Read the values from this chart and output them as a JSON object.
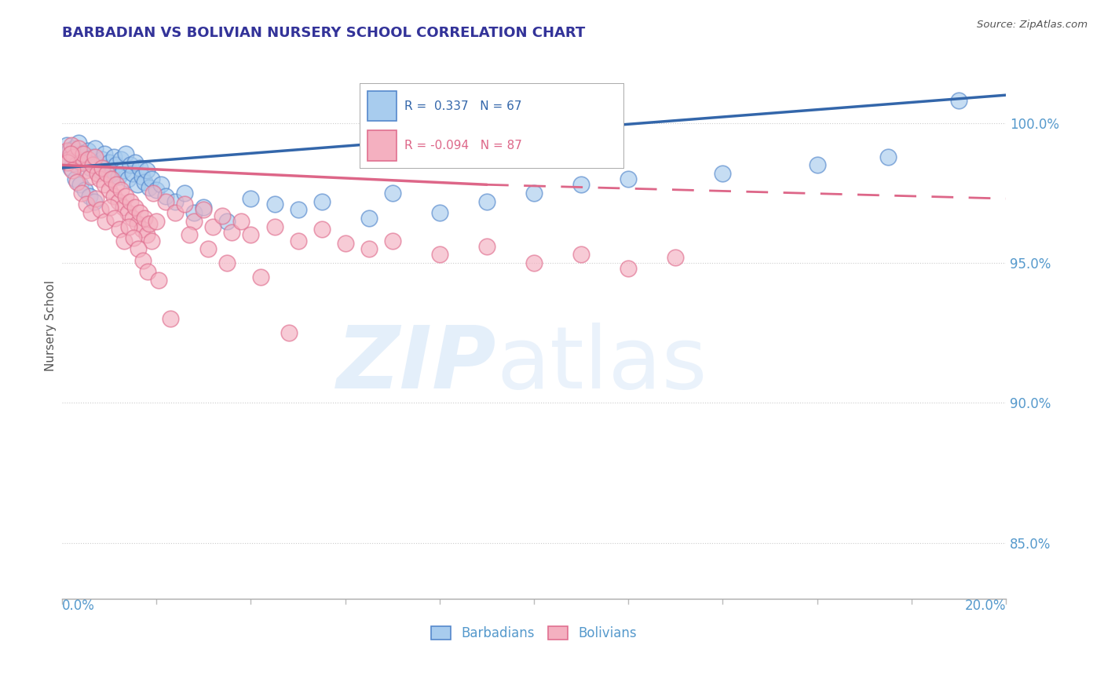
{
  "title": "BARBADIAN VS BOLIVIAN NURSERY SCHOOL CORRELATION CHART",
  "source": "Source: ZipAtlas.com",
  "ylabel": "Nursery School",
  "yticks": [
    85.0,
    90.0,
    95.0,
    100.0
  ],
  "xlim": [
    0.0,
    20.0
  ],
  "ylim": [
    83.0,
    102.5
  ],
  "blue_R": 0.337,
  "blue_N": 67,
  "pink_R": -0.094,
  "pink_N": 87,
  "blue_color": "#A8CCEE",
  "pink_color": "#F4B0C0",
  "blue_edge_color": "#5588CC",
  "pink_edge_color": "#E07090",
  "blue_line_color": "#3366AA",
  "pink_line_color": "#DD6688",
  "title_color": "#333399",
  "axis_color": "#5599CC",
  "blue_scatter_x": [
    0.1,
    0.15,
    0.2,
    0.25,
    0.3,
    0.35,
    0.4,
    0.45,
    0.5,
    0.55,
    0.6,
    0.65,
    0.7,
    0.75,
    0.8,
    0.85,
    0.9,
    0.95,
    1.0,
    1.05,
    1.1,
    1.15,
    1.2,
    1.25,
    1.3,
    1.35,
    1.4,
    1.45,
    1.5,
    1.55,
    1.6,
    1.65,
    1.7,
    1.75,
    1.8,
    1.85,
    1.9,
    2.0,
    2.1,
    2.2,
    2.4,
    2.6,
    2.8,
    3.0,
    3.5,
    4.0,
    4.5,
    5.0,
    5.5,
    6.5,
    7.0,
    8.0,
    9.0,
    10.0,
    11.0,
    12.0,
    14.0,
    16.0,
    17.5,
    19.0,
    0.12,
    0.18,
    0.28,
    0.38,
    0.48,
    0.58,
    0.68
  ],
  "blue_scatter_y": [
    99.2,
    99.0,
    98.8,
    99.1,
    98.5,
    99.3,
    98.9,
    98.6,
    98.7,
    99.0,
    98.4,
    98.8,
    99.1,
    98.5,
    98.3,
    98.7,
    98.9,
    98.4,
    98.6,
    98.2,
    98.8,
    98.5,
    98.1,
    98.7,
    98.3,
    98.9,
    98.0,
    98.5,
    98.2,
    98.6,
    97.8,
    98.4,
    98.1,
    97.9,
    98.3,
    97.7,
    98.0,
    97.6,
    97.8,
    97.4,
    97.2,
    97.5,
    96.8,
    97.0,
    96.5,
    97.3,
    97.1,
    96.9,
    97.2,
    96.6,
    97.5,
    96.8,
    97.2,
    97.5,
    97.8,
    98.0,
    98.2,
    98.5,
    98.8,
    100.8,
    98.6,
    98.4,
    98.0,
    97.8,
    97.6,
    97.4,
    97.2
  ],
  "pink_scatter_x": [
    0.1,
    0.15,
    0.2,
    0.25,
    0.3,
    0.35,
    0.4,
    0.45,
    0.5,
    0.55,
    0.6,
    0.65,
    0.7,
    0.75,
    0.8,
    0.85,
    0.9,
    0.95,
    1.0,
    1.05,
    1.1,
    1.15,
    1.2,
    1.25,
    1.3,
    1.35,
    1.4,
    1.45,
    1.5,
    1.55,
    1.6,
    1.65,
    1.7,
    1.75,
    1.8,
    1.85,
    1.9,
    2.0,
    2.2,
    2.4,
    2.6,
    2.8,
    3.0,
    3.2,
    3.4,
    3.6,
    3.8,
    4.0,
    4.5,
    5.0,
    5.5,
    6.0,
    6.5,
    7.0,
    8.0,
    9.0,
    10.0,
    11.0,
    12.0,
    13.0,
    0.12,
    0.18,
    0.22,
    0.32,
    0.42,
    0.52,
    0.62,
    0.72,
    0.82,
    0.92,
    1.02,
    1.12,
    1.22,
    1.32,
    1.42,
    1.52,
    1.62,
    1.72,
    1.82,
    1.92,
    2.05,
    2.3,
    2.7,
    3.1,
    3.5,
    4.2,
    4.8
  ],
  "pink_scatter_y": [
    99.0,
    98.7,
    99.2,
    98.8,
    98.5,
    99.1,
    98.6,
    98.9,
    98.3,
    98.7,
    98.1,
    98.5,
    98.8,
    98.2,
    98.0,
    98.4,
    97.8,
    98.2,
    97.6,
    98.0,
    97.4,
    97.8,
    97.2,
    97.6,
    97.0,
    97.4,
    96.8,
    97.2,
    96.6,
    97.0,
    96.4,
    96.8,
    96.2,
    96.6,
    96.0,
    96.4,
    95.8,
    96.5,
    97.2,
    96.8,
    97.1,
    96.5,
    96.9,
    96.3,
    96.7,
    96.1,
    96.5,
    96.0,
    96.3,
    95.8,
    96.2,
    95.7,
    95.5,
    95.8,
    95.3,
    95.6,
    95.0,
    95.3,
    94.8,
    95.2,
    98.6,
    98.9,
    98.3,
    97.9,
    97.5,
    97.1,
    96.8,
    97.3,
    96.9,
    96.5,
    97.0,
    96.6,
    96.2,
    95.8,
    96.3,
    95.9,
    95.5,
    95.1,
    94.7,
    97.5,
    94.4,
    93.0,
    96.0,
    95.5,
    95.0,
    94.5,
    92.5
  ]
}
